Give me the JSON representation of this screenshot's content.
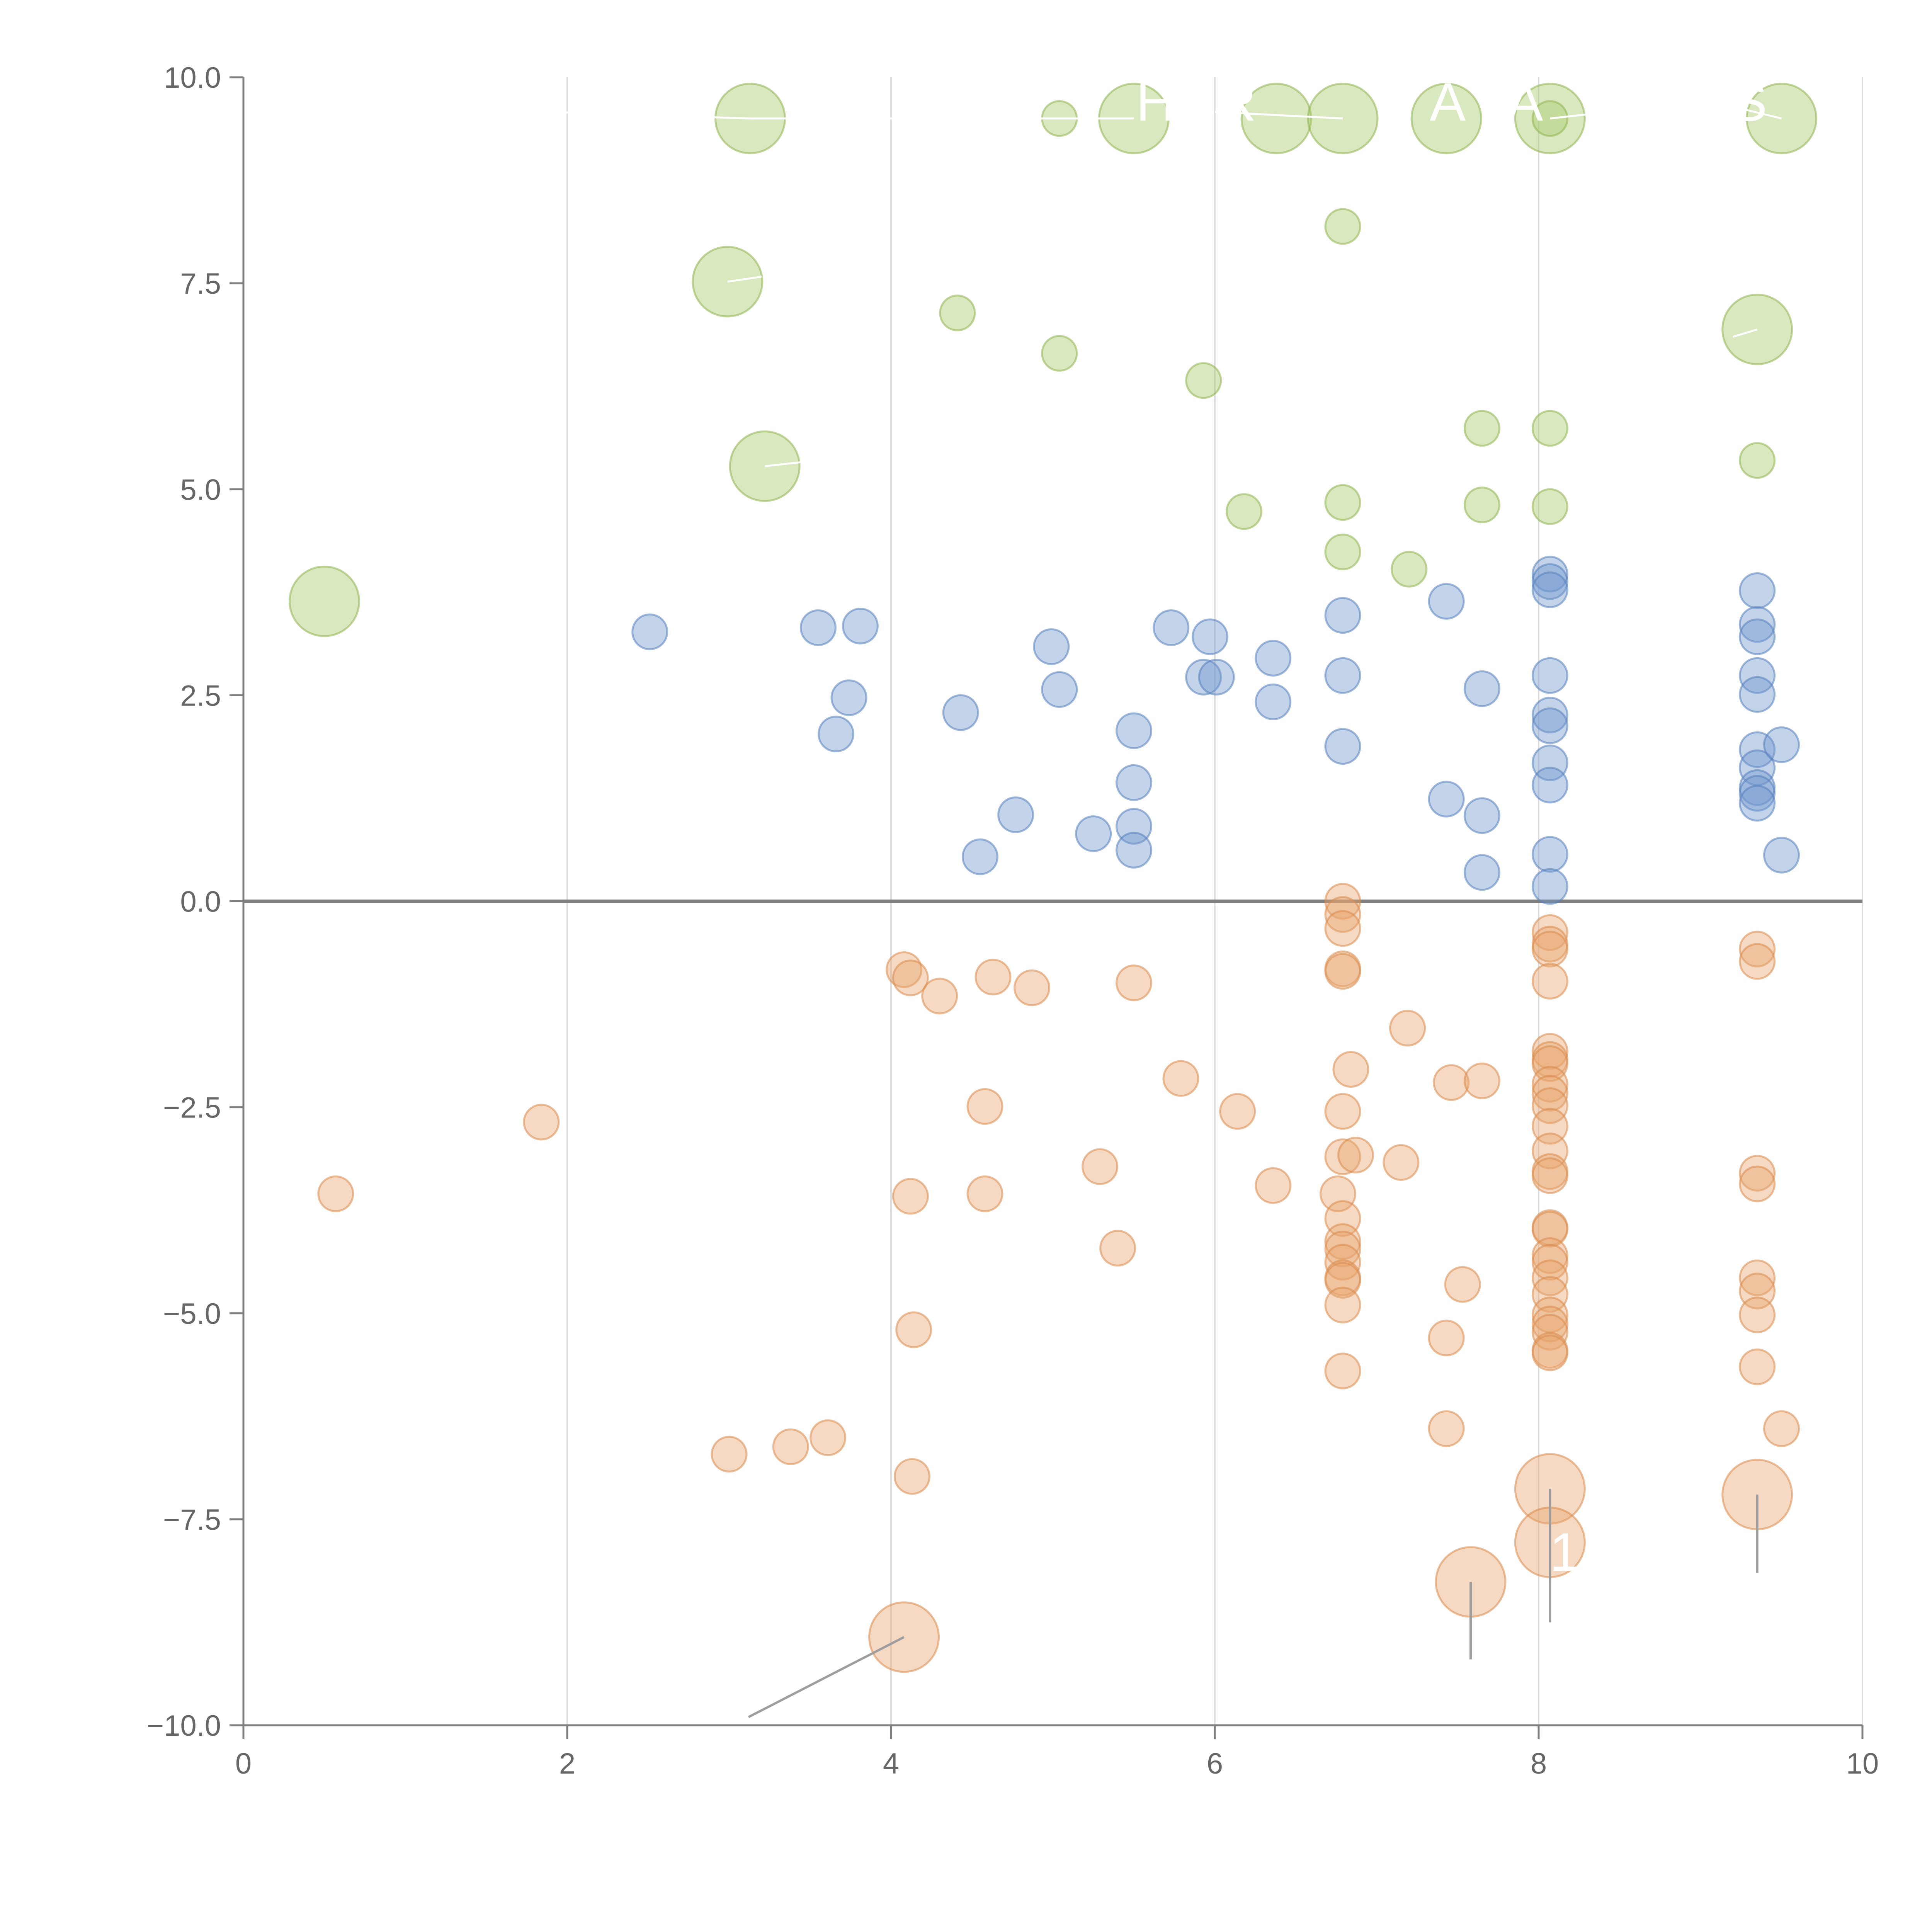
{
  "chart_data": {
    "type": "scatter",
    "title": "",
    "xlabel": "",
    "ylabel": "",
    "xlim": [
      0,
      10
    ],
    "ylim": [
      -10,
      10
    ],
    "grid": "vertical",
    "reference_line_y": 0,
    "xticks": [
      0,
      2,
      4,
      6,
      8,
      10
    ],
    "xtick_labels": [
      "0",
      "2",
      "4",
      "6",
      "8",
      "10"
    ],
    "yticks": [
      10,
      7.5,
      5,
      2.5,
      0,
      -2.5,
      -5,
      -7.5,
      -10
    ],
    "ytick_labels": [
      "10.0",
      "7.5",
      "5.0",
      "2.5",
      "0.0",
      "−2.5",
      "−5.0",
      "−7.5",
      "−10.0"
    ],
    "series": [
      {
        "name": "green",
        "color": "#a6c96a",
        "stroke": "#8fb24f",
        "points": [
          [
            0.5,
            3.64,
            1
          ],
          [
            3.13,
            9.5,
            1
          ],
          [
            2.99,
            7.52,
            1
          ],
          [
            3.22,
            5.28,
            1
          ],
          [
            5.5,
            9.5,
            1
          ],
          [
            6.38,
            9.5,
            1
          ],
          [
            6.79,
            9.5,
            1
          ],
          [
            7.43,
            9.5,
            1
          ],
          [
            8.07,
            9.5,
            1
          ],
          [
            9.5,
            9.5,
            1
          ],
          [
            9.35,
            6.94,
            1
          ],
          [
            5.04,
            9.5,
            0
          ],
          [
            6.79,
            8.19,
            0
          ],
          [
            4.41,
            7.14,
            0
          ],
          [
            5.04,
            6.65,
            0
          ],
          [
            5.93,
            6.32,
            0
          ],
          [
            7.65,
            5.74,
            0
          ],
          [
            8.07,
            5.74,
            0
          ],
          [
            9.35,
            5.35,
            0
          ],
          [
            6.79,
            4.84,
            0
          ],
          [
            7.65,
            4.81,
            0
          ],
          [
            8.07,
            4.79,
            0
          ],
          [
            6.18,
            4.73,
            0
          ],
          [
            6.79,
            4.24,
            0
          ],
          [
            7.2,
            4.03,
            0
          ],
          [
            8.07,
            9.5,
            0
          ]
        ]
      },
      {
        "name": "blue",
        "color": "#6f97cd",
        "stroke": "#5580bb",
        "points": [
          [
            2.51,
            3.27,
            0
          ],
          [
            3.55,
            3.32,
            0
          ],
          [
            3.81,
            3.34,
            0
          ],
          [
            3.74,
            2.47,
            0
          ],
          [
            3.66,
            2.03,
            0
          ],
          [
            4.43,
            2.29,
            0
          ],
          [
            4.99,
            3.09,
            0
          ],
          [
            5.04,
            2.57,
            0
          ],
          [
            4.77,
            1.05,
            0
          ],
          [
            4.55,
            0.54,
            0
          ],
          [
            5.25,
            0.82,
            0
          ],
          [
            5.5,
            2.07,
            0
          ],
          [
            5.5,
            1.44,
            0
          ],
          [
            5.5,
            0.91,
            0
          ],
          [
            5.5,
            0.62,
            0
          ],
          [
            5.73,
            3.32,
            0
          ],
          [
            5.97,
            3.21,
            0
          ],
          [
            5.93,
            2.72,
            0
          ],
          [
            6.01,
            2.72,
            0
          ],
          [
            6.36,
            2.95,
            0
          ],
          [
            6.36,
            2.42,
            0
          ],
          [
            6.79,
            3.47,
            0
          ],
          [
            6.79,
            2.74,
            0
          ],
          [
            6.79,
            1.88,
            0
          ],
          [
            7.43,
            3.64,
            0
          ],
          [
            7.43,
            1.24,
            0
          ],
          [
            7.65,
            2.58,
            0
          ],
          [
            7.65,
            1.04,
            0
          ],
          [
            7.65,
            0.35,
            0
          ],
          [
            8.07,
            3.97,
            0
          ],
          [
            8.07,
            3.88,
            0
          ],
          [
            8.07,
            3.78,
            0
          ],
          [
            8.07,
            2.74,
            0
          ],
          [
            8.07,
            2.26,
            0
          ],
          [
            8.07,
            2.13,
            0
          ],
          [
            8.07,
            1.68,
            0
          ],
          [
            8.07,
            1.41,
            0
          ],
          [
            8.07,
            0.57,
            0
          ],
          [
            8.07,
            0.18,
            0
          ],
          [
            9.35,
            3.77,
            0
          ],
          [
            9.35,
            3.36,
            0
          ],
          [
            9.35,
            3.21,
            0
          ],
          [
            9.35,
            2.74,
            0
          ],
          [
            9.35,
            2.51,
            0
          ],
          [
            9.35,
            1.84,
            0
          ],
          [
            9.35,
            1.62,
            0
          ],
          [
            9.35,
            1.38,
            0
          ],
          [
            9.35,
            1.31,
            0
          ],
          [
            9.35,
            1.19,
            0
          ],
          [
            9.5,
            1.9,
            0
          ],
          [
            9.5,
            0.56,
            0
          ]
        ]
      },
      {
        "name": "orange",
        "color": "#e8a46d",
        "stroke": "#d98a4d",
        "points": [
          [
            0.57,
            -3.55,
            0
          ],
          [
            1.84,
            -2.68,
            0
          ],
          [
            3.0,
            -6.71,
            0
          ],
          [
            3.38,
            -6.62,
            0
          ],
          [
            3.61,
            -6.51,
            0
          ],
          [
            4.08,
            -0.83,
            0
          ],
          [
            4.12,
            -0.93,
            0
          ],
          [
            4.3,
            -1.15,
            0
          ],
          [
            4.63,
            -0.92,
            0
          ],
          [
            4.87,
            -1.05,
            0
          ],
          [
            4.12,
            -3.58,
            0
          ],
          [
            4.14,
            -5.2,
            0
          ],
          [
            4.13,
            -6.98,
            0
          ],
          [
            4.58,
            -2.49,
            0
          ],
          [
            4.58,
            -3.55,
            0
          ],
          [
            5.5,
            -0.99,
            0
          ],
          [
            5.29,
            -3.22,
            0
          ],
          [
            5.4,
            -4.21,
            0
          ],
          [
            5.79,
            -2.15,
            0
          ],
          [
            6.14,
            -2.55,
            0
          ],
          [
            6.36,
            -3.45,
            0
          ],
          [
            6.79,
            0.0,
            0
          ],
          [
            6.79,
            -0.16,
            0
          ],
          [
            6.79,
            -0.33,
            0
          ],
          [
            6.79,
            -0.82,
            0
          ],
          [
            6.79,
            -0.85,
            0
          ],
          [
            6.79,
            -2.55,
            0
          ],
          [
            6.79,
            -3.1,
            0
          ],
          [
            6.84,
            -2.04,
            0
          ],
          [
            6.87,
            -3.08,
            0
          ],
          [
            6.76,
            -3.55,
            0
          ],
          [
            6.79,
            -3.85,
            0
          ],
          [
            6.79,
            -4.13,
            0
          ],
          [
            6.79,
            -4.22,
            0
          ],
          [
            6.79,
            -4.38,
            0
          ],
          [
            6.79,
            -4.57,
            0
          ],
          [
            6.79,
            -4.6,
            0
          ],
          [
            6.79,
            -4.9,
            0
          ],
          [
            6.79,
            -5.7,
            0
          ],
          [
            7.15,
            -3.17,
            0
          ],
          [
            7.19,
            -1.54,
            0
          ],
          [
            7.43,
            -5.3,
            0
          ],
          [
            7.43,
            -6.4,
            0
          ],
          [
            7.46,
            -2.2,
            0
          ],
          [
            7.53,
            -4.65,
            0
          ],
          [
            7.65,
            -2.18,
            0
          ],
          [
            8.07,
            -0.38,
            0
          ],
          [
            8.07,
            -0.52,
            0
          ],
          [
            8.07,
            -0.58,
            0
          ],
          [
            8.07,
            -0.97,
            0
          ],
          [
            8.07,
            -1.82,
            0
          ],
          [
            8.07,
            -1.92,
            0
          ],
          [
            8.07,
            -1.97,
            0
          ],
          [
            8.07,
            -2.22,
            0
          ],
          [
            8.07,
            -2.33,
            0
          ],
          [
            8.07,
            -2.48,
            0
          ],
          [
            8.07,
            -2.73,
            0
          ],
          [
            8.07,
            -3.03,
            0
          ],
          [
            8.07,
            -3.28,
            0
          ],
          [
            8.07,
            -3.33,
            0
          ],
          [
            8.07,
            -3.96,
            0
          ],
          [
            8.07,
            -3.98,
            0
          ],
          [
            8.07,
            -4.3,
            0
          ],
          [
            8.07,
            -4.38,
            0
          ],
          [
            8.07,
            -4.57,
            0
          ],
          [
            8.07,
            -4.77,
            0
          ],
          [
            8.07,
            -5.02,
            0
          ],
          [
            8.07,
            -5.13,
            0
          ],
          [
            8.07,
            -5.23,
            0
          ],
          [
            8.07,
            -5.45,
            0
          ],
          [
            8.07,
            -5.48,
            0
          ],
          [
            9.35,
            -0.58,
            0
          ],
          [
            9.35,
            -0.73,
            0
          ],
          [
            9.35,
            -3.3,
            0
          ],
          [
            9.35,
            -3.43,
            0
          ],
          [
            9.35,
            -4.57,
            0
          ],
          [
            9.35,
            -4.73,
            0
          ],
          [
            9.35,
            -5.02,
            0
          ],
          [
            9.35,
            -5.65,
            0
          ],
          [
            9.5,
            -6.4,
            0
          ],
          [
            4.08,
            -8.93,
            1
          ],
          [
            7.58,
            -8.26,
            1
          ],
          [
            8.07,
            -7.13,
            1
          ],
          [
            8.07,
            -7.78,
            1
          ],
          [
            9.35,
            -7.2,
            1
          ]
        ]
      }
    ],
    "annotations": [
      "H",
      "R",
      "A",
      "A",
      "S",
      "1"
    ]
  }
}
